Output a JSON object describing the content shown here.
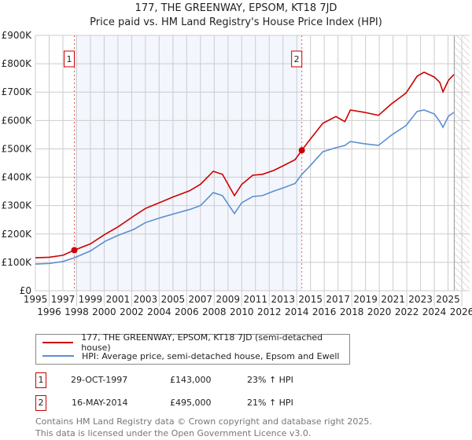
{
  "chart_data": {
    "type": "line",
    "title": "177, THE GREENWAY, EPSOM, KT18 7JD",
    "subtitle": "Price paid vs. HM Land Registry's House Price Index (HPI)",
    "xlim": [
      1995,
      2026.57
    ],
    "ylim": [
      0,
      900000
    ],
    "x_ticks": [
      "1995",
      "1996",
      "1997",
      "1998",
      "1999",
      "2000",
      "2001",
      "2002",
      "2003",
      "2004",
      "2005",
      "2006",
      "2007",
      "2008",
      "2009",
      "2010",
      "2011",
      "2012",
      "2013",
      "2014",
      "2015",
      "2016",
      "2017",
      "2018",
      "2019",
      "2020",
      "2021",
      "2022",
      "2023",
      "2024",
      "2025",
      "2026"
    ],
    "y_ticks": [
      {
        "v": 0,
        "label": "£0"
      },
      {
        "v": 100000,
        "label": "£100K"
      },
      {
        "v": 200000,
        "label": "£200K"
      },
      {
        "v": 300000,
        "label": "£300K"
      },
      {
        "v": 400000,
        "label": "£400K"
      },
      {
        "v": 500000,
        "label": "£500K"
      },
      {
        "v": 600000,
        "label": "£600K"
      },
      {
        "v": 700000,
        "label": "£700K"
      },
      {
        "v": 800000,
        "label": "£800K"
      },
      {
        "v": 900000,
        "label": "£900K"
      }
    ],
    "grid": true,
    "shaded_range": [
      1997.83,
      2014.37
    ],
    "forecast_hatch_from": 2025.45,
    "series": [
      {
        "name": "177, THE GREENWAY, EPSOM, KT18 7JD (semi-detached house)",
        "color": "#cc0000",
        "x": [
          1995,
          1996,
          1997,
          1997.83,
          1999,
          2000.1,
          2001,
          2002.15,
          2003,
          2004.15,
          2005,
          2006.2,
          2007,
          2007.93,
          2008.6,
          2009.47,
          2010,
          2010.8,
          2011.5,
          2012.33,
          2013,
          2013.88,
          2014.37,
          2014.85,
          2015.9,
          2016.85,
          2017.5,
          2017.9,
          2018.9,
          2019.94,
          2020.9,
          2021.95,
          2022.75,
          2023.26,
          2024,
          2024.4,
          2024.63,
          2025.03,
          2025.43
        ],
        "y": [
          116000,
          118000,
          125000,
          143000,
          165000,
          200000,
          225000,
          263000,
          290000,
          313000,
          330000,
          352000,
          375000,
          421000,
          410000,
          335000,
          375000,
          407000,
          410000,
          424000,
          440000,
          462000,
          495000,
          526000,
          590000,
          614000,
          596000,
          637000,
          629000,
          618000,
          659000,
          697000,
          756000,
          770000,
          753000,
          734000,
          701000,
          742000,
          762000
        ]
      },
      {
        "name": "HPI: Average price, semi-detached house, Epsom and Ewell",
        "color": "#5b8fd0",
        "x": [
          1995,
          1996,
          1997,
          1997.83,
          1999,
          2000.1,
          2001,
          2002.15,
          2003,
          2004.15,
          2005,
          2006.2,
          2007,
          2007.93,
          2008.6,
          2009.47,
          2010,
          2010.8,
          2011.5,
          2012.33,
          2013,
          2013.88,
          2014.37,
          2014.85,
          2015.9,
          2016.85,
          2017.5,
          2017.9,
          2018.9,
          2019.94,
          2020.9,
          2021.95,
          2022.75,
          2023.26,
          2024,
          2024.4,
          2024.63,
          2025.03,
          2025.43
        ],
        "y": [
          94000,
          96000,
          103000,
          116000,
          140000,
          175000,
          195000,
          216000,
          240000,
          258000,
          270000,
          286000,
          300000,
          346000,
          335000,
          272000,
          310000,
          332000,
          335000,
          351000,
          362000,
          378000,
          410000,
          434000,
          490000,
          504000,
          512000,
          526000,
          518000,
          512000,
          549000,
          582000,
          632000,
          637000,
          623000,
          596000,
          576000,
          615000,
          629000
        ]
      }
    ],
    "sales": [
      {
        "num": "1",
        "x": 1997.83,
        "y": 143000
      },
      {
        "num": "2",
        "x": 2014.37,
        "y": 495000
      }
    ]
  },
  "legend": {
    "items": [
      "177, THE GREENWAY, EPSOM, KT18 7JD (semi-detached house)",
      "HPI: Average price, semi-detached house, Epsom and Ewell"
    ]
  },
  "transactions": [
    {
      "num": "1",
      "date": "29-OCT-1997",
      "price": "£143,000",
      "hpi": "23% ↑ HPI"
    },
    {
      "num": "2",
      "date": "16-MAY-2014",
      "price": "£495,000",
      "hpi": "21% ↑ HPI"
    }
  ],
  "footer": [
    "Contains HM Land Registry data © Crown copyright and database right 2025.",
    "This data is licensed under the Open Government Licence v3.0."
  ]
}
